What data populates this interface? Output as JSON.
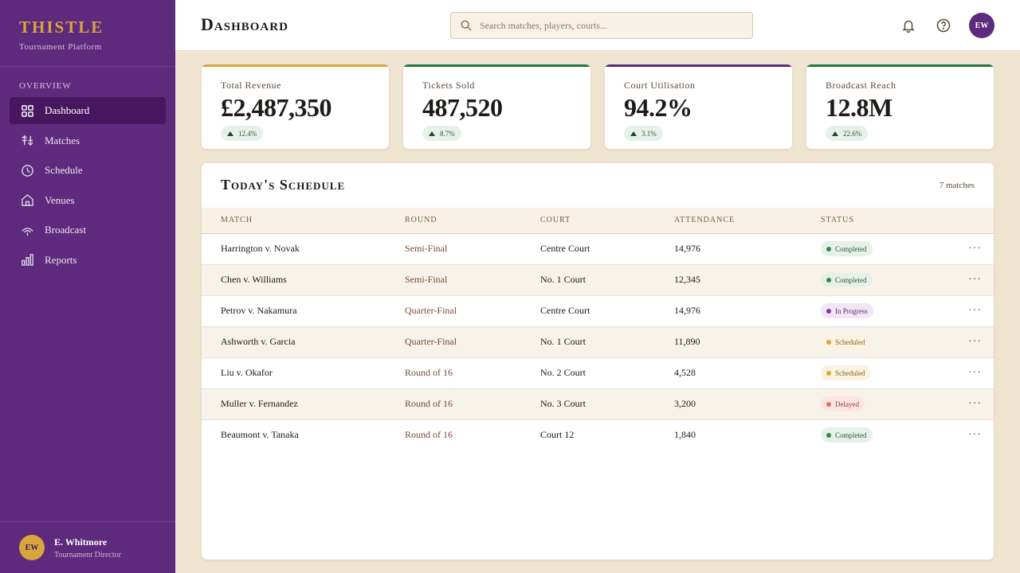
{
  "sidebar": {
    "brand": "THISTLE",
    "brand_sub": "Tournament Platform",
    "section": "OVERVIEW",
    "items": [
      {
        "label": "Dashboard",
        "icon": "grid-icon"
      },
      {
        "label": "Matches",
        "icon": "sort-icon"
      },
      {
        "label": "Schedule",
        "icon": "clock-icon"
      },
      {
        "label": "Venues",
        "icon": "home-icon"
      },
      {
        "label": "Broadcast",
        "icon": "broadcast-icon"
      },
      {
        "label": "Reports",
        "icon": "bar-chart-icon"
      }
    ],
    "active": "Dashboard",
    "user": {
      "initials": "EW",
      "name": "E. Whitmore",
      "role": "Tournament Director"
    }
  },
  "header": {
    "title": "Dashboard",
    "search_placeholder": "Search matches, players, courts...",
    "avatar_initials": "EW"
  },
  "stats": [
    {
      "label": "Total Revenue",
      "value": "£2,487,350",
      "delta": "12.4%",
      "accent": "#D9A53C"
    },
    {
      "label": "Tickets Sold",
      "value": "487,520",
      "delta": "8.7%",
      "accent": "#1F7A3A"
    },
    {
      "label": "Court Utilisation",
      "value": "94.2%",
      "delta": "3.1%",
      "accent": "#5E2A7D"
    },
    {
      "label": "Broadcast Reach",
      "value": "12.8M",
      "delta": "22.6%",
      "accent": "#1F7A3A"
    }
  ],
  "schedule": {
    "title": "Today's Schedule",
    "count": "7 matches",
    "columns": [
      "MATCH",
      "ROUND",
      "COURT",
      "ATTENDANCE",
      "STATUS"
    ],
    "rows": [
      {
        "match": "Harrington v. Novak",
        "round": "Semi-Final",
        "court": "Centre Court",
        "attendance": "14,976",
        "status": "Completed"
      },
      {
        "match": "Chen v. Williams",
        "round": "Semi-Final",
        "court": "No. 1 Court",
        "attendance": "12,345",
        "status": "Completed"
      },
      {
        "match": "Petrov v. Nakamura",
        "round": "Quarter-Final",
        "court": "Centre Court",
        "attendance": "14,976",
        "status": "In Progress"
      },
      {
        "match": "Ashworth v. Garcia",
        "round": "Quarter-Final",
        "court": "No. 1 Court",
        "attendance": "11,890",
        "status": "Scheduled"
      },
      {
        "match": "Liu v. Okafor",
        "round": "Round of 16",
        "court": "No. 2 Court",
        "attendance": "4,528",
        "status": "Scheduled"
      },
      {
        "match": "Muller v. Fernandez",
        "round": "Round of 16",
        "court": "No. 3 Court",
        "attendance": "3,200",
        "status": "Delayed"
      },
      {
        "match": "Beaumont v. Tanaka",
        "round": "Round of 16",
        "court": "Court 12",
        "attendance": "1,840",
        "status": "Completed"
      }
    ],
    "more_label": "···"
  }
}
